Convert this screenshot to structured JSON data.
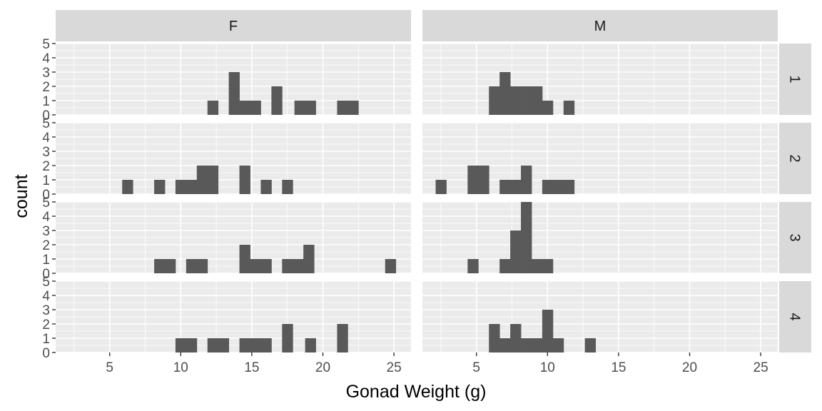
{
  "chart_data": {
    "type": "bar",
    "subtype": "faceted-histogram",
    "xlabel": "Gonad Weight (g)",
    "ylabel": "count",
    "xlim": [
      1.2,
      26.2
    ],
    "ylim": [
      0,
      5
    ],
    "x_ticks": [
      "5",
      "10",
      "15",
      "20",
      "25"
    ],
    "y_ticks": [
      "0",
      "1",
      "2",
      "3",
      "4",
      "5"
    ],
    "bin_width": 0.75,
    "facet_columns": [
      "F",
      "M"
    ],
    "facet_rows": [
      "1",
      "2",
      "3",
      "4"
    ],
    "bar_color": "#595959",
    "panel_background": "#ebebeb",
    "strip_background": "#d9d9d9",
    "panels": [
      {
        "column": "F",
        "row": "1",
        "bins": [
          [
            11.88,
            12.63,
            1
          ],
          [
            13.38,
            14.13,
            3
          ],
          [
            14.13,
            14.88,
            1
          ],
          [
            14.88,
            15.63,
            1
          ],
          [
            16.38,
            17.13,
            2
          ],
          [
            18.0,
            18.75,
            1
          ],
          [
            18.75,
            19.5,
            1
          ],
          [
            21.0,
            21.75,
            1
          ],
          [
            21.75,
            22.5,
            1
          ]
        ]
      },
      {
        "column": "M",
        "row": "1",
        "bins": [
          [
            5.88,
            6.63,
            2
          ],
          [
            6.63,
            7.38,
            3
          ],
          [
            7.38,
            8.13,
            2
          ],
          [
            8.13,
            8.88,
            2
          ],
          [
            8.88,
            9.63,
            2
          ],
          [
            9.63,
            10.38,
            1
          ],
          [
            11.13,
            11.88,
            1
          ]
        ]
      },
      {
        "column": "F",
        "row": "2",
        "bins": [
          [
            5.88,
            6.63,
            1
          ],
          [
            8.13,
            8.88,
            1
          ],
          [
            9.63,
            10.38,
            1
          ],
          [
            10.38,
            11.13,
            1
          ],
          [
            11.13,
            11.88,
            2
          ],
          [
            11.88,
            12.63,
            2
          ],
          [
            14.13,
            14.88,
            2
          ],
          [
            15.63,
            16.38,
            1
          ],
          [
            17.13,
            17.88,
            1
          ]
        ]
      },
      {
        "column": "M",
        "row": "2",
        "bins": [
          [
            2.13,
            2.88,
            1
          ],
          [
            4.38,
            5.13,
            2
          ],
          [
            5.13,
            5.88,
            2
          ],
          [
            6.63,
            7.38,
            1
          ],
          [
            7.38,
            8.13,
            1
          ],
          [
            8.13,
            8.88,
            2
          ],
          [
            9.63,
            10.38,
            1
          ],
          [
            10.38,
            11.13,
            1
          ],
          [
            11.13,
            11.88,
            1
          ]
        ]
      },
      {
        "column": "F",
        "row": "3",
        "bins": [
          [
            8.13,
            8.88,
            1
          ],
          [
            8.88,
            9.63,
            1
          ],
          [
            10.38,
            11.13,
            1
          ],
          [
            11.13,
            11.88,
            1
          ],
          [
            14.13,
            14.88,
            2
          ],
          [
            14.88,
            15.63,
            1
          ],
          [
            15.63,
            16.38,
            1
          ],
          [
            17.13,
            17.88,
            1
          ],
          [
            17.88,
            18.63,
            1
          ],
          [
            18.63,
            19.38,
            2
          ],
          [
            24.38,
            25.13,
            1
          ]
        ]
      },
      {
        "column": "M",
        "row": "3",
        "bins": [
          [
            4.38,
            5.13,
            1
          ],
          [
            6.63,
            7.38,
            1
          ],
          [
            7.38,
            8.13,
            3
          ],
          [
            8.13,
            8.88,
            5
          ],
          [
            8.88,
            9.63,
            1
          ],
          [
            9.63,
            10.38,
            1
          ]
        ]
      },
      {
        "column": "F",
        "row": "4",
        "bins": [
          [
            9.63,
            10.38,
            1
          ],
          [
            10.38,
            11.13,
            1
          ],
          [
            11.88,
            12.63,
            1
          ],
          [
            12.63,
            13.38,
            1
          ],
          [
            14.13,
            14.88,
            1
          ],
          [
            14.88,
            15.63,
            1
          ],
          [
            15.63,
            16.38,
            1
          ],
          [
            17.13,
            17.88,
            2
          ],
          [
            18.75,
            19.5,
            1
          ],
          [
            21.0,
            21.75,
            2
          ]
        ]
      },
      {
        "column": "M",
        "row": "4",
        "bins": [
          [
            5.88,
            6.63,
            2
          ],
          [
            6.63,
            7.38,
            1
          ],
          [
            7.38,
            8.13,
            2
          ],
          [
            8.13,
            8.88,
            1
          ],
          [
            8.88,
            9.63,
            1
          ],
          [
            9.63,
            10.38,
            3
          ],
          [
            10.38,
            11.13,
            1
          ],
          [
            12.63,
            13.38,
            1
          ]
        ]
      }
    ]
  }
}
